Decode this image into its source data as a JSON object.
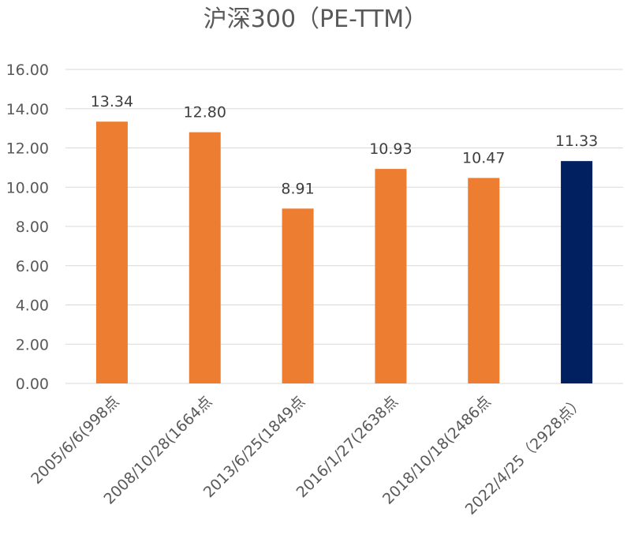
{
  "chart_data": {
    "type": "bar",
    "title": "沪深300（PE-TTM）",
    "categories": [
      "2005/6/6(998点",
      "2008/10/28(1664点",
      "2013/6/25(1849点",
      "2016/1/27(2638点",
      "2018/10/18(2486点",
      "2022/4/25（2928点）"
    ],
    "values": [
      13.34,
      12.8,
      8.91,
      10.93,
      10.47,
      11.33
    ],
    "data_labels": [
      "13.34",
      "12.80",
      "8.91",
      "10.93",
      "10.47",
      "11.33"
    ],
    "y_ticks": [
      "0.00",
      "2.00",
      "4.00",
      "6.00",
      "8.00",
      "10.00",
      "12.00",
      "14.00",
      "16.00"
    ],
    "ylim": [
      0,
      16
    ],
    "grid": true,
    "legend": "none",
    "colors": {
      "default_bar": "#ED7D31",
      "highlight_bar": "#002060",
      "highlight_index": 5
    }
  }
}
